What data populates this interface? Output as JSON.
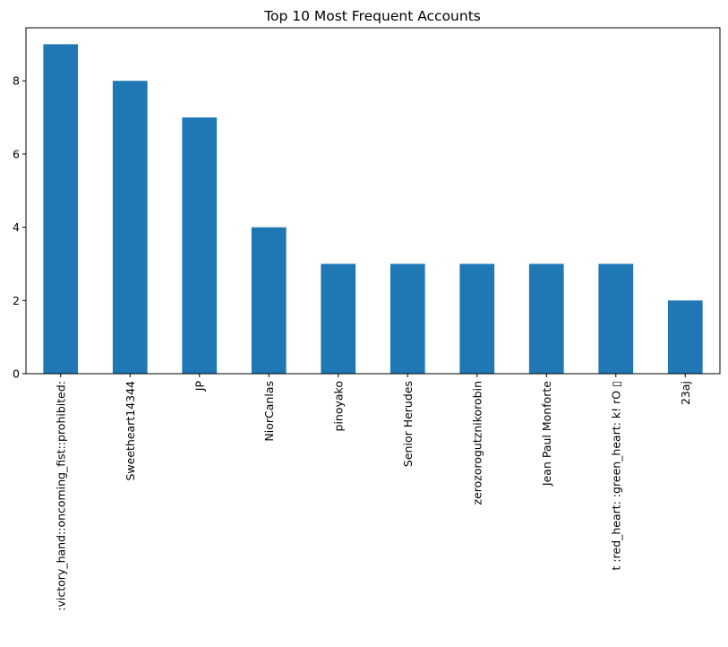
{
  "chart_data": {
    "type": "bar",
    "title": "Top 10 Most Frequent Accounts",
    "xlabel": "",
    "ylabel": "",
    "categories": [
      ":victory_hand::oncoming_fist::prohibited:",
      "Sweetheart14344",
      "JP",
      "NiorCanlas",
      "pinoyako",
      "Senior Herudes",
      "zerozorogutznikorobin",
      "Jean Paul Monforte",
      "t :red_heart: :green_heart: k! rO ▯",
      "23aj"
    ],
    "values": [
      9,
      8,
      7,
      4,
      3,
      3,
      3,
      3,
      3,
      2
    ],
    "ylim": [
      0,
      9.45
    ],
    "yticks": [
      0,
      2,
      4,
      6,
      8
    ],
    "bar_color": "#1f77b4",
    "grid": false,
    "legend": false
  }
}
